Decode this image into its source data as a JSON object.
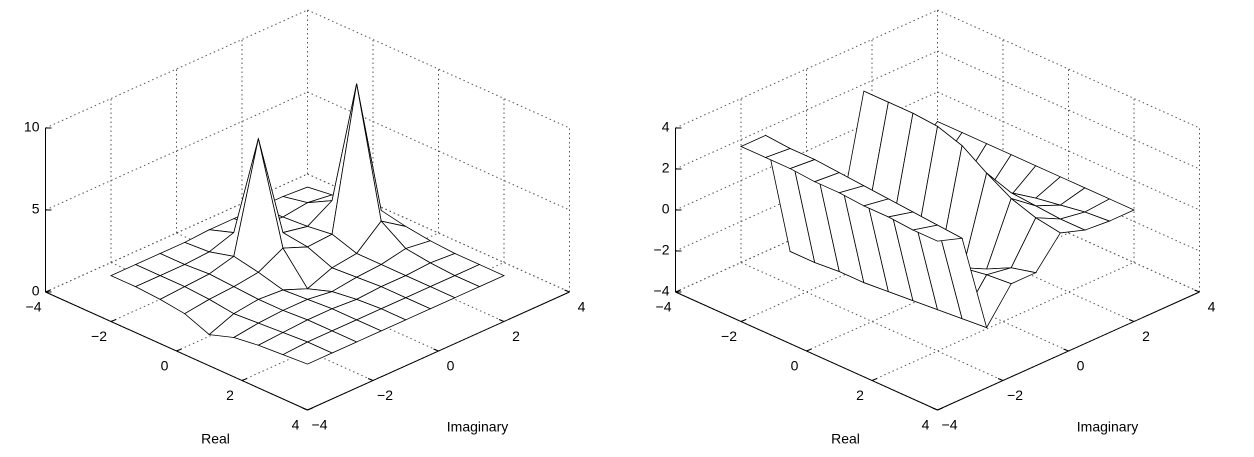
{
  "chart_data": [
    {
      "type": "surface",
      "xlabel": "Real",
      "ylabel": "Imaginary",
      "color": "#000000",
      "grid": true,
      "x": [
        -3,
        -2.25,
        -1.5,
        -0.75,
        0,
        0.75,
        1.5,
        2.25,
        3
      ],
      "y": [
        -3,
        -2.25,
        -1.5,
        -0.75,
        0,
        0.75,
        1.5,
        2.25,
        3
      ],
      "z": [
        [
          1,
          1,
          1,
          1,
          1.1,
          1.1,
          1.1,
          1.1,
          1
        ],
        [
          1,
          1,
          1,
          1.1,
          1.6,
          1.3,
          1.2,
          1.4,
          1.2
        ],
        [
          0.9,
          1,
          1.1,
          1.5,
          8,
          1.6,
          1.3,
          2.2,
          1.4
        ],
        [
          0.7,
          0.9,
          1,
          1.2,
          2,
          1.4,
          1.5,
          10,
          1.6
        ],
        [
          0.1,
          0.7,
          0.9,
          0.8,
          0.2,
          0.8,
          1,
          2.3,
          1.3
        ],
        [
          0.6,
          0.8,
          0.9,
          0.9,
          0.7,
          0.9,
          1,
          1.3,
          1.1
        ],
        [
          0.8,
          0.9,
          1,
          1,
          0.9,
          1,
          1,
          1.1,
          1
        ],
        [
          0.9,
          1,
          1,
          1,
          1,
          1,
          1,
          1,
          1
        ],
        [
          1,
          1,
          1,
          1,
          1,
          1,
          1,
          1,
          1
        ]
      ],
      "xlim": [
        -4,
        4
      ],
      "ylim": [
        -4,
        4
      ],
      "zlim": [
        0,
        10
      ],
      "xticks": [
        {
          "value": -4,
          "label": "−4"
        },
        {
          "value": -2,
          "label": "−2"
        },
        0,
        2,
        4
      ],
      "yticks": [
        {
          "value": -4,
          "label": "−4"
        },
        {
          "value": -2,
          "label": "−2"
        },
        0,
        2,
        4
      ],
      "zticks": [
        0,
        5,
        10
      ]
    },
    {
      "type": "surface",
      "xlabel": "Real",
      "ylabel": "Imaginary",
      "color": "#000000",
      "grid": true,
      "x": [
        -3,
        -2.25,
        -1.5,
        -0.75,
        0,
        0.75,
        1.5,
        2.25,
        3
      ],
      "y": [
        -3,
        -2.25,
        -1.5,
        -0.75,
        0,
        0.75,
        1.5,
        2.25,
        3
      ],
      "z": [
        [
          3.1,
          3.1,
          -3.1,
          -2.6,
          -2.8,
          3.1,
          1.5,
          -1,
          0
        ],
        [
          3.1,
          3.0,
          -3.1,
          -2.4,
          -2.9,
          3.1,
          1.2,
          -1.2,
          0
        ],
        [
          3.1,
          3.0,
          -3.0,
          -2.2,
          -3.0,
          3.1,
          0.9,
          -1.4,
          0
        ],
        [
          3.0,
          2.9,
          -3.0,
          -2.0,
          -3.1,
          3.0,
          0.6,
          -1.3,
          0
        ],
        [
          3.0,
          2.8,
          -2.9,
          -1.8,
          -3.1,
          2.6,
          0.4,
          -0.9,
          0
        ],
        [
          2.9,
          2.7,
          -2.8,
          -1.5,
          -2.5,
          1.8,
          0.3,
          -0.5,
          0
        ],
        [
          2.9,
          2.6,
          -2.7,
          -1.2,
          -1.8,
          1.1,
          0.2,
          -0.3,
          0
        ],
        [
          2.8,
          2.5,
          -2.6,
          -1.0,
          -1.2,
          0.7,
          0.1,
          -0.1,
          0
        ],
        [
          2.8,
          2.4,
          -2.5,
          -0.9,
          -0.9,
          0.5,
          0.1,
          0,
          0
        ]
      ],
      "xlim": [
        -4,
        4
      ],
      "ylim": [
        -4,
        4
      ],
      "zlim": [
        -4,
        4
      ],
      "xticks": [
        {
          "value": -4,
          "label": "−4"
        },
        {
          "value": -2,
          "label": "−2"
        },
        0,
        2,
        4
      ],
      "yticks": [
        {
          "value": -4,
          "label": "−4"
        },
        {
          "value": -2,
          "label": "−2"
        },
        0,
        2,
        4
      ],
      "zticks": [
        {
          "value": -4,
          "label": "−4"
        },
        {
          "value": -2,
          "label": "−2"
        },
        0,
        2,
        4
      ]
    }
  ]
}
